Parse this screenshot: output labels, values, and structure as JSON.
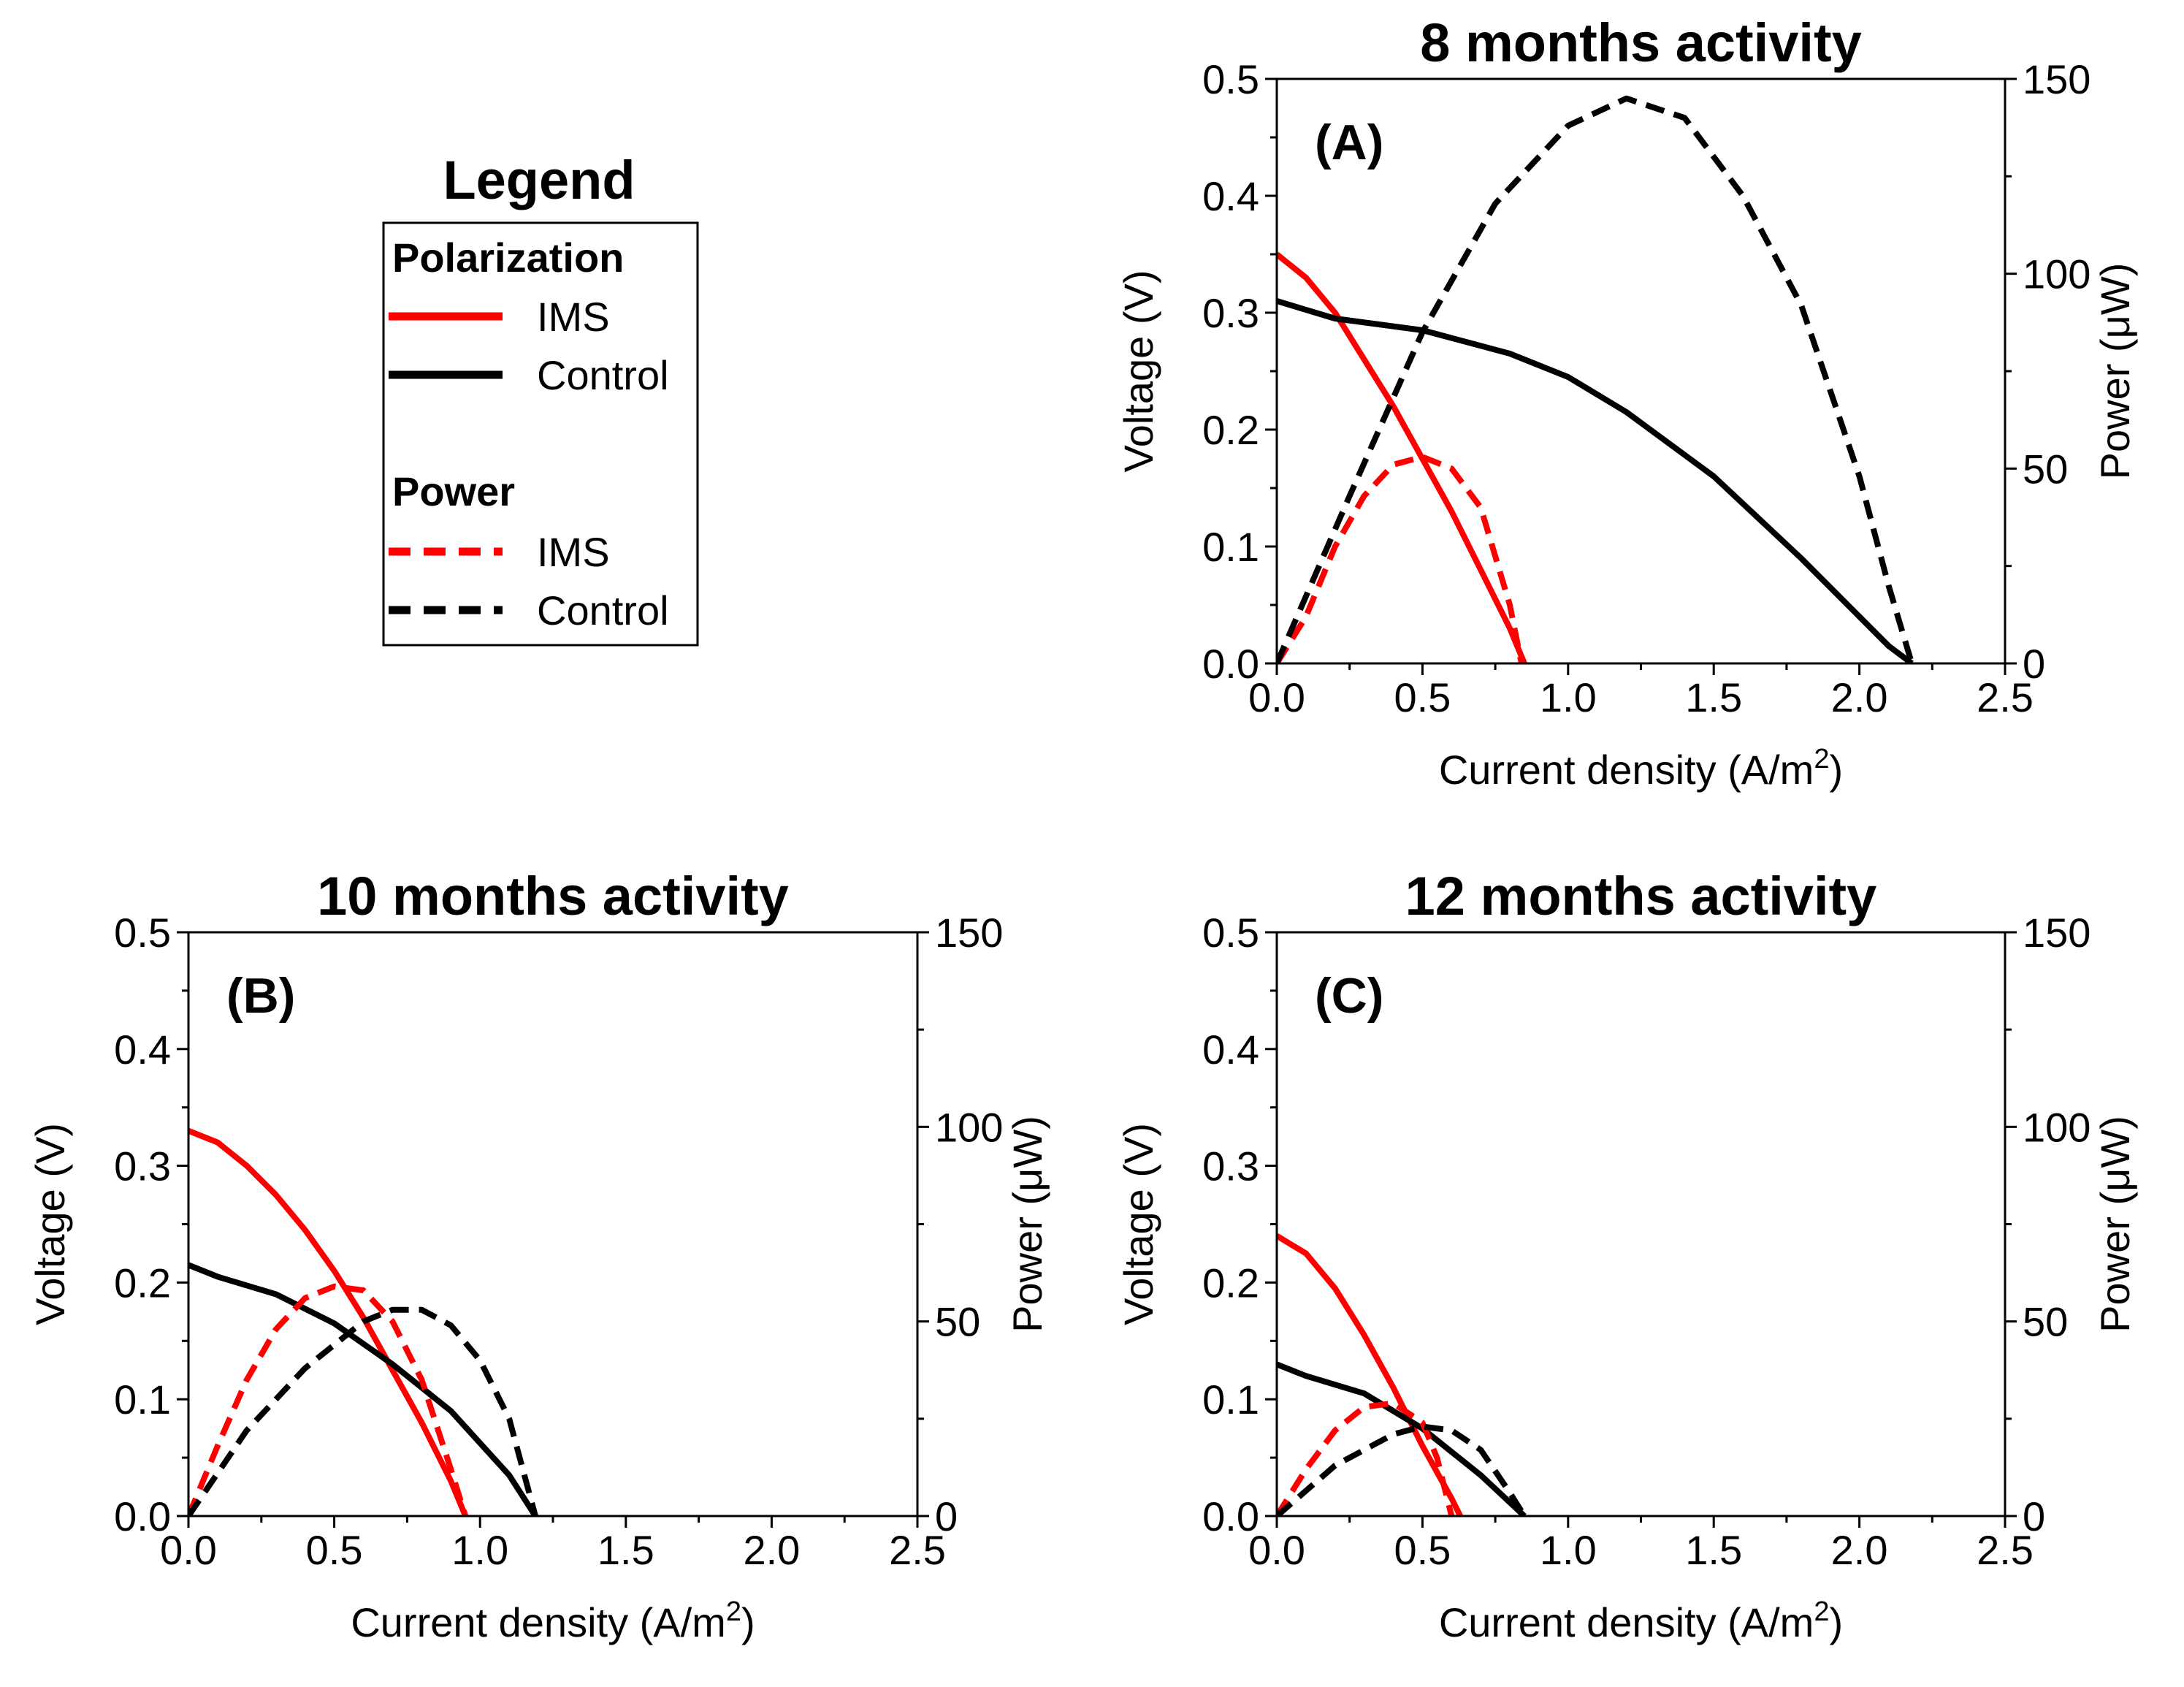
{
  "legend": {
    "title": "Legend",
    "groups": [
      {
        "heading": "Polarization",
        "entries": [
          {
            "label": "IMS",
            "color": "#ff0000",
            "dash": false
          },
          {
            "label": "Control",
            "color": "#000000",
            "dash": false
          }
        ]
      },
      {
        "heading": "Power",
        "entries": [
          {
            "label": "IMS",
            "color": "#ff0000",
            "dash": true
          },
          {
            "label": "Control",
            "color": "#000000",
            "dash": true
          }
        ]
      }
    ]
  },
  "chart_data": [
    {
      "type": "line",
      "title": "8 months activity",
      "label": "(A)",
      "xlabel": "Current density (A/m",
      "xlabel_sup": "2",
      "xlabel_close": ")",
      "ylabel": "Voltage (V)",
      "y2label": "Power (μW)",
      "xlim": [
        0,
        2.5
      ],
      "ylim": [
        0,
        0.5
      ],
      "y2lim": [
        0,
        150
      ],
      "xticks": [
        "0.0",
        "0.5",
        "1.0",
        "1.5",
        "2.0",
        "2.5"
      ],
      "yticks": [
        "0.0",
        "0.1",
        "0.2",
        "0.3",
        "0.4",
        "0.5"
      ],
      "y2ticks": [
        "0",
        "50",
        "100",
        "150"
      ],
      "series": [
        {
          "name": "IMS polarization",
          "axis": "left",
          "color": "#ff0000",
          "dash": false,
          "x": [
            0,
            0.1,
            0.2,
            0.3,
            0.4,
            0.5,
            0.6,
            0.7,
            0.8,
            0.85
          ],
          "y": [
            0.35,
            0.33,
            0.3,
            0.26,
            0.22,
            0.175,
            0.13,
            0.08,
            0.03,
            0.0
          ]
        },
        {
          "name": "Control polarization",
          "axis": "left",
          "color": "#000000",
          "dash": false,
          "x": [
            0,
            0.2,
            0.5,
            0.8,
            1.0,
            1.2,
            1.5,
            1.8,
            2.0,
            2.1,
            2.18
          ],
          "y": [
            0.31,
            0.295,
            0.285,
            0.265,
            0.245,
            0.215,
            0.16,
            0.09,
            0.04,
            0.015,
            0.0
          ]
        },
        {
          "name": "IMS power",
          "axis": "right",
          "color": "#ff0000",
          "dash": true,
          "x": [
            0,
            0.1,
            0.2,
            0.3,
            0.4,
            0.5,
            0.6,
            0.7,
            0.8,
            0.84
          ],
          "y": [
            0,
            12,
            30,
            43,
            51,
            53,
            50,
            40,
            15,
            0
          ]
        },
        {
          "name": "Control power",
          "axis": "right",
          "color": "#000000",
          "dash": true,
          "x": [
            0,
            0.25,
            0.5,
            0.75,
            1.0,
            1.2,
            1.4,
            1.6,
            1.8,
            2.0,
            2.1,
            2.18
          ],
          "y": [
            0,
            43,
            85,
            118,
            138,
            145,
            140,
            120,
            92,
            48,
            20,
            0
          ]
        }
      ]
    },
    {
      "type": "line",
      "title": "10 months activity",
      "label": "(B)",
      "xlabel": "Current density (A/m",
      "xlabel_sup": "2",
      "xlabel_close": ")",
      "ylabel": "Voltage (V)",
      "y2label": "Power (μW)",
      "xlim": [
        0,
        2.5
      ],
      "ylim": [
        0,
        0.5
      ],
      "y2lim": [
        0,
        150
      ],
      "xticks": [
        "0.0",
        "0.5",
        "1.0",
        "1.5",
        "2.0",
        "2.5"
      ],
      "yticks": [
        "0.0",
        "0.1",
        "0.2",
        "0.3",
        "0.4",
        "0.5"
      ],
      "y2ticks": [
        "0",
        "50",
        "100",
        "150"
      ],
      "series": [
        {
          "name": "IMS polarization",
          "axis": "left",
          "color": "#ff0000",
          "dash": false,
          "x": [
            0,
            0.1,
            0.2,
            0.3,
            0.4,
            0.5,
            0.6,
            0.7,
            0.8,
            0.9,
            0.95
          ],
          "y": [
            0.33,
            0.32,
            0.3,
            0.275,
            0.245,
            0.21,
            0.17,
            0.125,
            0.08,
            0.03,
            0.0
          ]
        },
        {
          "name": "Control polarization",
          "axis": "left",
          "color": "#000000",
          "dash": false,
          "x": [
            0,
            0.1,
            0.3,
            0.5,
            0.7,
            0.9,
            1.1,
            1.19
          ],
          "y": [
            0.215,
            0.205,
            0.19,
            0.165,
            0.13,
            0.09,
            0.035,
            0.0
          ]
        },
        {
          "name": "IMS power",
          "axis": "right",
          "color": "#ff0000",
          "dash": true,
          "x": [
            0,
            0.1,
            0.2,
            0.3,
            0.4,
            0.5,
            0.6,
            0.7,
            0.8,
            0.9,
            0.95
          ],
          "y": [
            0,
            18,
            35,
            48,
            56,
            59,
            58,
            50,
            35,
            12,
            0
          ]
        },
        {
          "name": "Control power",
          "axis": "right",
          "color": "#000000",
          "dash": true,
          "x": [
            0,
            0.2,
            0.4,
            0.6,
            0.7,
            0.8,
            0.9,
            1.0,
            1.1,
            1.19
          ],
          "y": [
            0,
            22,
            38,
            50,
            53,
            53,
            49,
            40,
            25,
            0
          ]
        }
      ]
    },
    {
      "type": "line",
      "title": "12 months activity",
      "label": "(C)",
      "xlabel": "Current density (A/m",
      "xlabel_sup": "2",
      "xlabel_close": ")",
      "ylabel": "Voltage (V)",
      "y2label": "Power (μW)",
      "xlim": [
        0,
        2.5
      ],
      "ylim": [
        0,
        0.5
      ],
      "y2lim": [
        0,
        150
      ],
      "xticks": [
        "0.0",
        "0.5",
        "1.0",
        "1.5",
        "2.0",
        "2.5"
      ],
      "yticks": [
        "0.0",
        "0.1",
        "0.2",
        "0.3",
        "0.4",
        "0.5"
      ],
      "y2ticks": [
        "0",
        "50",
        "100",
        "150"
      ],
      "series": [
        {
          "name": "IMS polarization",
          "axis": "left",
          "color": "#ff0000",
          "dash": false,
          "x": [
            0,
            0.1,
            0.2,
            0.3,
            0.4,
            0.5,
            0.6,
            0.63
          ],
          "y": [
            0.24,
            0.225,
            0.195,
            0.155,
            0.11,
            0.06,
            0.015,
            0.0
          ]
        },
        {
          "name": "Control polarization",
          "axis": "left",
          "color": "#000000",
          "dash": false,
          "x": [
            0,
            0.1,
            0.3,
            0.5,
            0.7,
            0.85
          ],
          "y": [
            0.13,
            0.12,
            0.105,
            0.075,
            0.035,
            0.0
          ]
        },
        {
          "name": "IMS power",
          "axis": "right",
          "color": "#ff0000",
          "dash": true,
          "x": [
            0,
            0.1,
            0.2,
            0.3,
            0.4,
            0.5,
            0.55,
            0.6
          ],
          "y": [
            0,
            12,
            22,
            28,
            29,
            24,
            15,
            0
          ]
        },
        {
          "name": "Control power",
          "axis": "right",
          "color": "#000000",
          "dash": true,
          "x": [
            0,
            0.2,
            0.4,
            0.5,
            0.6,
            0.7,
            0.8,
            0.85
          ],
          "y": [
            0,
            13,
            21,
            23,
            22,
            17,
            6,
            0
          ]
        }
      ]
    }
  ]
}
